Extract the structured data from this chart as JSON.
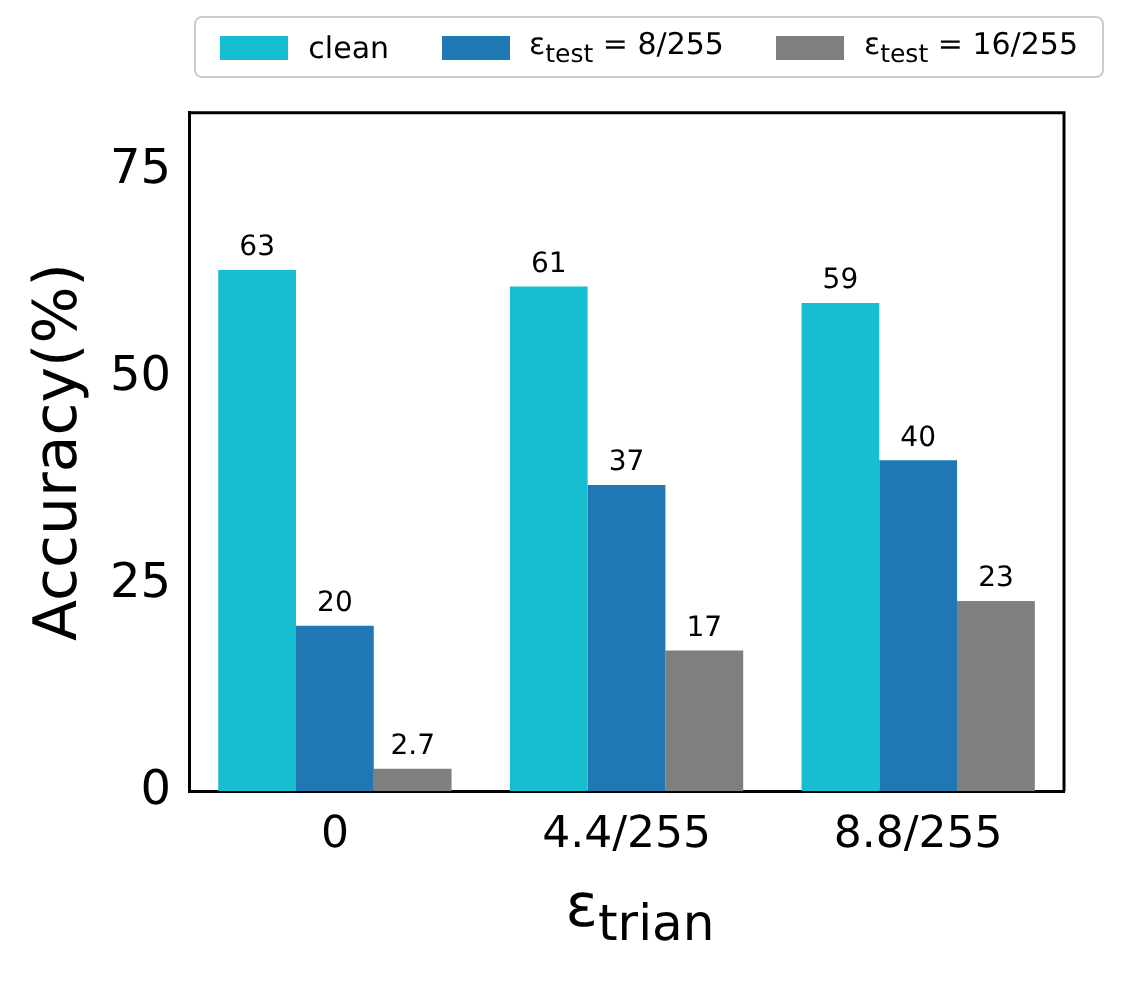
{
  "chart_data": {
    "type": "bar",
    "xlabel": "ε$_{trian}$",
    "ylabel": "Accuracy(%)",
    "categories": [
      "0",
      "4.4/255",
      "8.8/255"
    ],
    "series": [
      {
        "name": "clean",
        "color": "#17becf",
        "values": [
          63,
          61,
          59
        ]
      },
      {
        "name": "ε$_{test}$ = 8/255",
        "color": "#1f77b4",
        "values": [
          20,
          37,
          40
        ]
      },
      {
        "name": "ε$_{test}$ = 16/255",
        "color": "#7f7f7f",
        "values": [
          2.7,
          17,
          23
        ]
      }
    ],
    "ylim": [
      0,
      82
    ],
    "yticks": [
      0,
      25,
      50,
      75
    ],
    "grid": false,
    "legend": "top",
    "data_labels": true
  }
}
